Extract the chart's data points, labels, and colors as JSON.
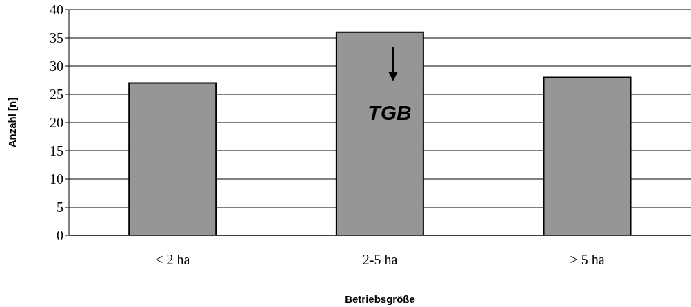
{
  "chart_data": {
    "type": "bar",
    "xlabel": "Betriebsgröße",
    "ylabel": "Anzahl [n]",
    "categories": [
      "< 2 ha",
      "2-5 ha",
      "> 5 ha"
    ],
    "values": [
      27,
      36,
      28
    ],
    "color": "#969696",
    "ylim": [
      0,
      40
    ],
    "yticks": [
      0,
      5,
      10,
      15,
      20,
      25,
      30,
      35,
      40
    ],
    "grid": "y",
    "annotations": [
      "TGB"
    ]
  }
}
